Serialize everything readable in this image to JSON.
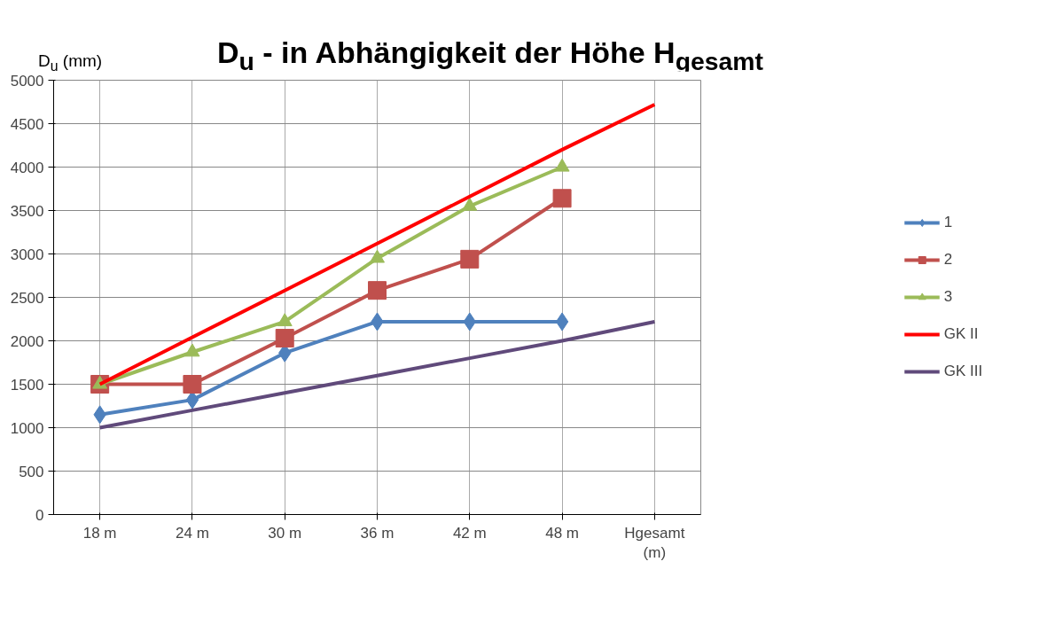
{
  "chart_data": {
    "type": "line",
    "title": "D$_{u}$ - in Abhängigkeit der Höhe H$_{gesamt}$",
    "ylabel": "D$_{u}$ (mm)",
    "categories": [
      "18 m",
      "24 m",
      "30 m",
      "36 m",
      "42 m",
      "48 m",
      "Hgesamt (m)"
    ],
    "ylim": [
      0,
      5000
    ],
    "yticks": [
      0,
      500,
      1000,
      1500,
      2000,
      2500,
      3000,
      3500,
      4000,
      4500,
      5000
    ],
    "grid": true,
    "legend": "right",
    "series": [
      {
        "name": "1",
        "color": "#4f81bd",
        "marker": "diamond",
        "values": [
          1150,
          1320,
          1860,
          2220,
          2220,
          2220,
          null
        ]
      },
      {
        "name": "2",
        "color": "#c0504d",
        "marker": "square",
        "values": [
          1500,
          1500,
          2030,
          2580,
          2940,
          3640,
          null
        ]
      },
      {
        "name": "3",
        "color": "#9bbb59",
        "marker": "triangle",
        "values": [
          1500,
          1870,
          2220,
          2950,
          3550,
          4000,
          null
        ]
      },
      {
        "name": "GK II",
        "color": "#ff0000",
        "marker": "none",
        "values": [
          1500,
          2040,
          2580,
          3120,
          3660,
          4200,
          4720
        ]
      },
      {
        "name": "GK III",
        "color": "#604a7b",
        "marker": "none",
        "values": [
          1000,
          1200,
          1400,
          1600,
          1800,
          2000,
          2220
        ]
      }
    ]
  }
}
